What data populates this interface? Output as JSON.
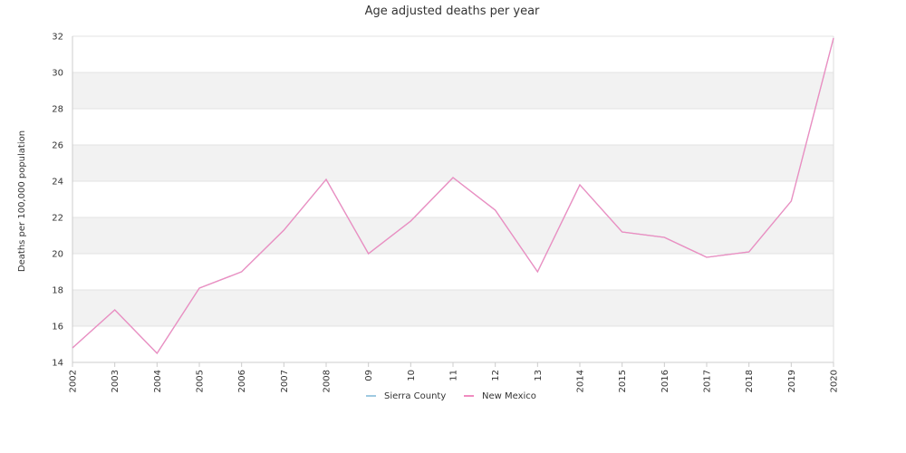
{
  "chart_data": {
    "type": "line",
    "title": "Age adjusted deaths per year",
    "xlabel": "",
    "ylabel": "Deaths per 100,000 population",
    "x": [
      "2002",
      "2003",
      "2004",
      "2005",
      "2006",
      "2007",
      "2008",
      "09",
      "10",
      "11",
      "12",
      "13",
      "2014",
      "2015",
      "2016",
      "2017",
      "2018",
      "2019",
      "2020"
    ],
    "ylim": [
      14,
      32
    ],
    "yticks": [
      14,
      16,
      18,
      20,
      22,
      24,
      26,
      28,
      30,
      32
    ],
    "grid": "alternating horizontal bands",
    "legend_position": "bottom",
    "series": [
      {
        "name": "Sierra County",
        "color": "#9ecae1",
        "values": [
          14.8,
          16.9,
          14.5,
          18.1,
          19.0,
          21.3,
          24.1,
          20.0,
          21.8,
          24.2,
          22.4,
          19.0,
          23.8,
          21.2,
          20.9,
          19.8,
          20.1,
          22.9,
          31.9
        ]
      },
      {
        "name": "New Mexico",
        "color": "#f08cc0",
        "values": [
          14.8,
          16.9,
          14.5,
          18.1,
          19.0,
          21.3,
          24.1,
          20.0,
          21.8,
          24.2,
          22.4,
          19.0,
          23.8,
          21.2,
          20.9,
          19.8,
          20.1,
          22.9,
          31.9
        ]
      }
    ]
  }
}
